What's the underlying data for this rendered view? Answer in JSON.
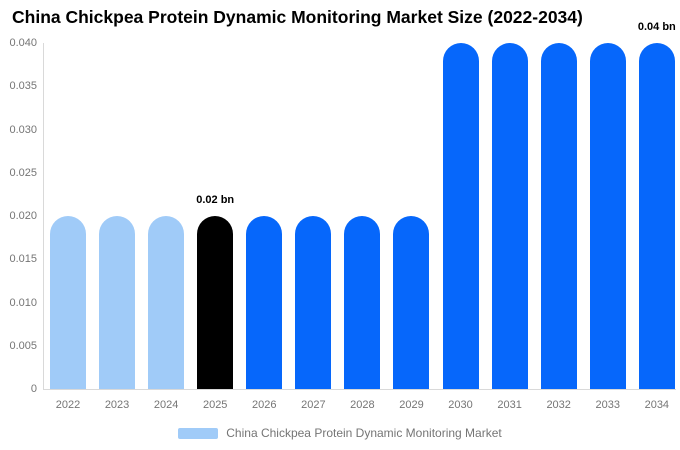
{
  "title": "China Chickpea Protein Dynamic Monitoring Market Size (2022-2034)",
  "legend": {
    "label": "China Chickpea Protein Dynamic Monitoring Market",
    "swatch_color": "#a0cbf8"
  },
  "palette": {
    "light_blue": "#a0cbf8",
    "blue": "#0667fb",
    "black": "#000000",
    "axis_text": "#757575",
    "axis_line": "#d9d9d9",
    "title_text": "#000000"
  },
  "chart_data": {
    "type": "bar",
    "title": "China Chickpea Protein Dynamic Monitoring Market Size (2022-2034)",
    "categories": [
      "2022",
      "2023",
      "2024",
      "2025",
      "2026",
      "2027",
      "2028",
      "2029",
      "2030",
      "2031",
      "2032",
      "2033",
      "2034"
    ],
    "series": [
      {
        "name": "China Chickpea Protein Dynamic Monitoring Market",
        "values": [
          0.02,
          0.02,
          0.02,
          0.02,
          0.02,
          0.02,
          0.02,
          0.02,
          0.04,
          0.04,
          0.04,
          0.04,
          0.04
        ]
      }
    ],
    "bar_colors": [
      "#a0cbf8",
      "#a0cbf8",
      "#a0cbf8",
      "#000000",
      "#0667fb",
      "#0667fb",
      "#0667fb",
      "#0667fb",
      "#0667fb",
      "#0667fb",
      "#0667fb",
      "#0667fb",
      "#0667fb"
    ],
    "annotations": [
      {
        "index": 3,
        "text": "0.02 bn"
      },
      {
        "index": 12,
        "text": "0.04 bn"
      }
    ],
    "xlabel": "",
    "ylabel": "",
    "ylim": [
      0,
      0.04
    ],
    "ytick_labels": [
      "0.040",
      "0.035",
      "0.030",
      "0.025",
      "0.020",
      "0.015",
      "0.010",
      "0.005",
      "0"
    ],
    "grid": false,
    "legend_position": "bottom",
    "unit": "bn"
  }
}
